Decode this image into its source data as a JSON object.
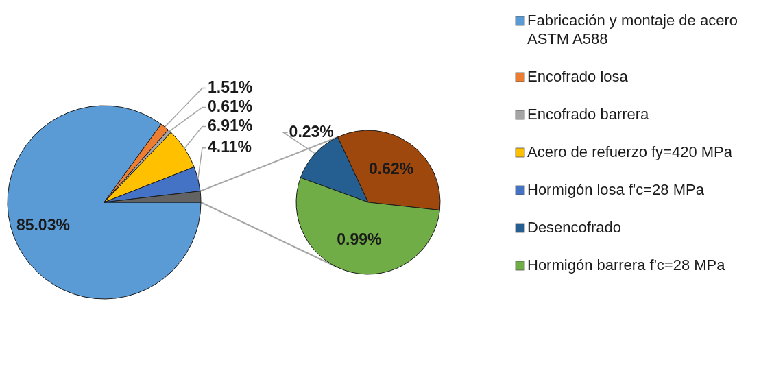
{
  "chart_data": [
    {
      "type": "pie",
      "categories": [
        "Fabricación y montaje de acero ASTM A588",
        "Encofrado losa",
        "Encofrado barrera",
        "Acero de refuerzo fy=420 MPa",
        "Hormigón losa f'c=28 MPa",
        null
      ],
      "values": [
        85.03,
        1.51,
        0.61,
        6.91,
        4.11,
        1.84
      ],
      "colors": [
        "#5b9bd5",
        "#ed7d31",
        "#a5a5a5",
        "#ffc000",
        "#4472c4",
        "#636363"
      ],
      "value_labels": [
        "85.03%",
        "1.51%",
        "0.61%",
        "6.91%",
        "4.11%",
        null
      ],
      "legend": "right"
    },
    {
      "type": "pie",
      "categories": [
        "Desencofrado",
        null,
        "Hormigón barrera f'c=28 MPa"
      ],
      "values": [
        0.23,
        0.62,
        0.99
      ],
      "colors": [
        "#255e91",
        "#9e480e",
        "#70ad47"
      ],
      "value_labels": [
        "0.23%",
        "0.62%",
        "0.99%"
      ],
      "legend": "right"
    }
  ]
}
